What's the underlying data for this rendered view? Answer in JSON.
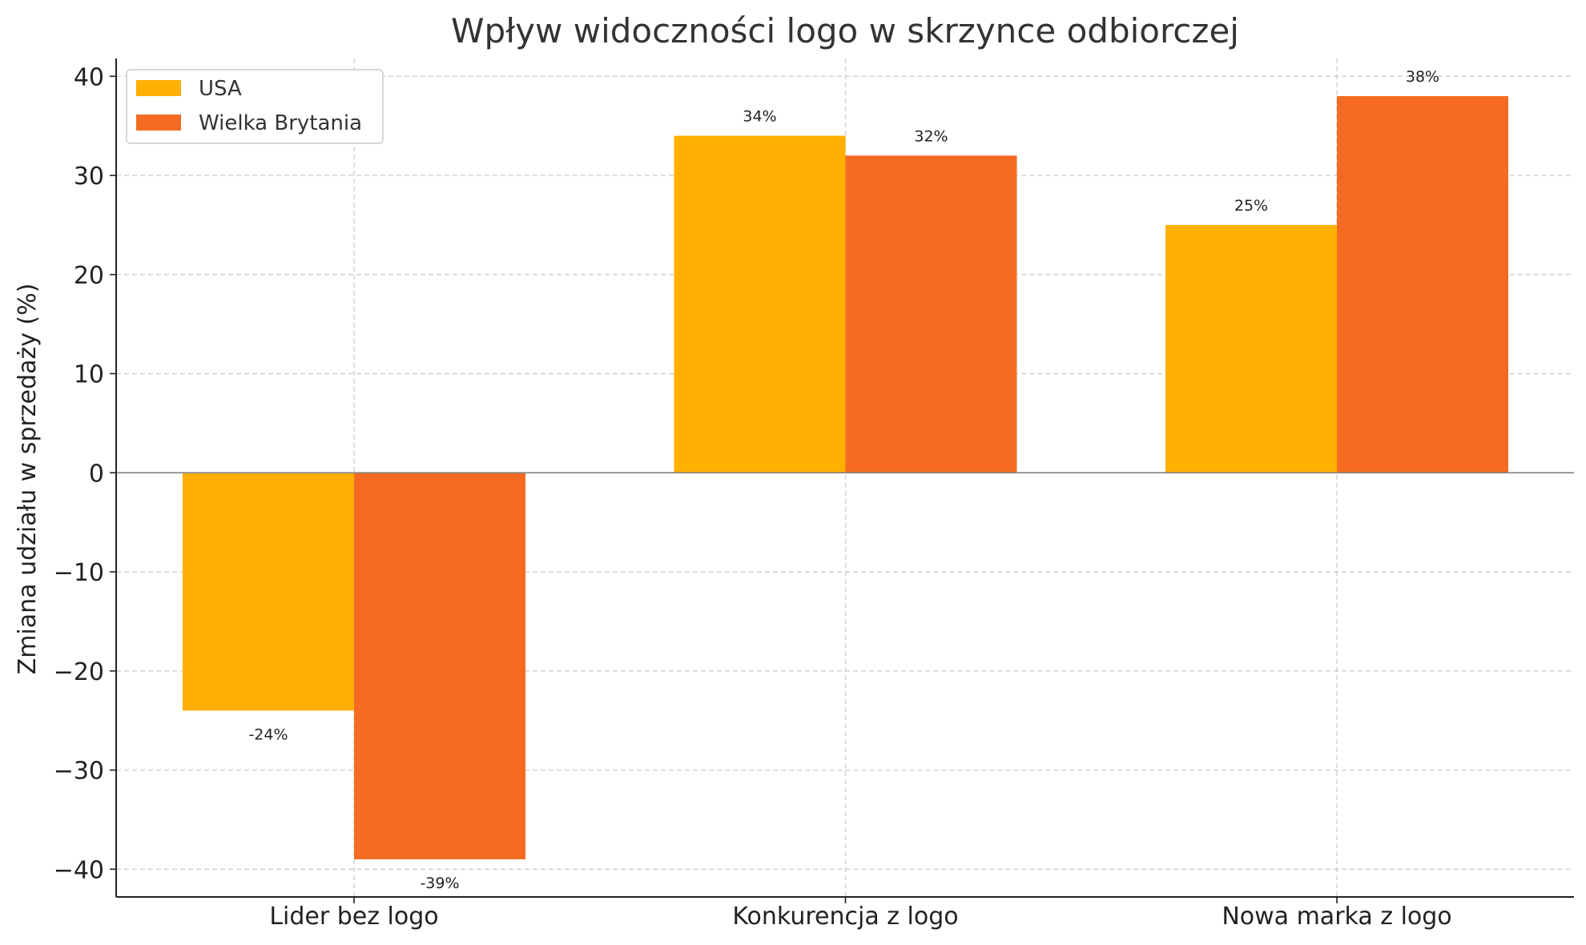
{
  "chart_data": {
    "type": "bar",
    "title": "Wpływ widoczności logo w skrzynce odbiorczej",
    "xlabel": "",
    "ylabel": "Zmiana udziału w sprzedaży (%)",
    "categories": [
      "Lider bez logo",
      "Konkurencja z logo",
      "Nowa marka z logo"
    ],
    "series": [
      {
        "name": "USA",
        "color": "#FFB000",
        "values": [
          -24,
          34,
          25
        ],
        "labels": [
          "-24%",
          "34%",
          "25%"
        ]
      },
      {
        "name": "Wielka Brytania",
        "color": "#F46B21",
        "values": [
          -39,
          32,
          38
        ],
        "labels": [
          "-39%",
          "32%",
          "38%"
        ]
      }
    ],
    "ylim": [
      -42.8,
      41.8
    ],
    "yticks": [
      -40,
      -30,
      -20,
      -10,
      0,
      10,
      20,
      30,
      40
    ],
    "ytick_labels": [
      "−40",
      "−30",
      "−20",
      "−10",
      "0",
      "10",
      "20",
      "30",
      "40"
    ],
    "grid": true,
    "legend_position": "top-left"
  }
}
